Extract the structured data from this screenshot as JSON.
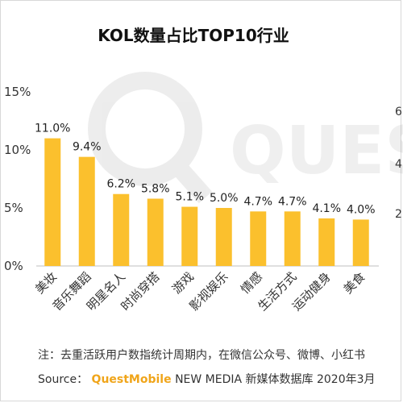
{
  "chart_data": {
    "type": "bar",
    "title": "KOL数量占比TOP10行业",
    "categories": [
      "美妆",
      "音乐舞蹈",
      "明星名人",
      "时尚穿搭",
      "游戏",
      "影视娱乐",
      "情感",
      "生活方式",
      "运动健身",
      "美食"
    ],
    "values": [
      11.0,
      9.4,
      6.2,
      5.8,
      5.1,
      5.0,
      4.7,
      4.7,
      4.1,
      4.0
    ],
    "value_labels": [
      "11.0%",
      "9.4%",
      "6.2%",
      "5.8%",
      "5.1%",
      "5.0%",
      "4.7%",
      "4.7%",
      "4.1%",
      "4.0%"
    ],
    "yticks": [
      "0%",
      "5%",
      "10%",
      "15%"
    ],
    "ylim": [
      0,
      15
    ],
    "grid": false,
    "bar_color": "#FBC02D",
    "right_axis_partial_ticks": [
      "6",
      "4",
      "2"
    ]
  },
  "watermark": {
    "text": "QUEST"
  },
  "note": "注：去重活跃用户数指统计周期内，在微信公众号、微博、小红书",
  "source": {
    "prefix": "Source：",
    "brand": "QuestMobile",
    "rest": "NEW MEDIA 新媒体数据库 2020年3月"
  }
}
